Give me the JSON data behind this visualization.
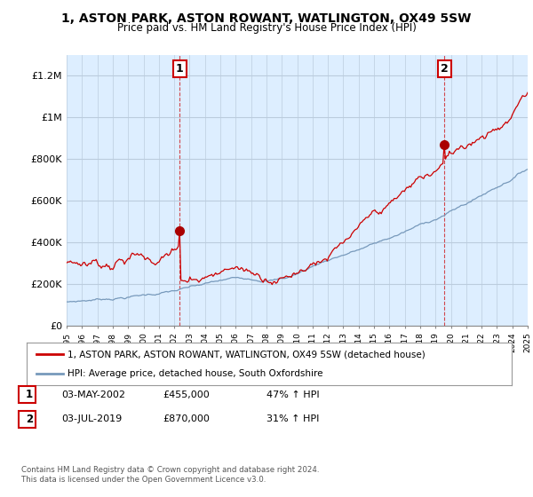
{
  "title_line1": "1, ASTON PARK, ASTON ROWANT, WATLINGTON, OX49 5SW",
  "title_line2": "Price paid vs. HM Land Registry's House Price Index (HPI)",
  "ylim": [
    0,
    1300000
  ],
  "yticks": [
    0,
    200000,
    400000,
    600000,
    800000,
    1000000,
    1200000
  ],
  "ytick_labels": [
    "£0",
    "£200K",
    "£400K",
    "£600K",
    "£800K",
    "£1M",
    "£1.2M"
  ],
  "x_start_year": 1995,
  "x_end_year": 2025,
  "sale1_year": 2002.33,
  "sale1_price": 455000,
  "sale2_year": 2019.5,
  "sale2_price": 870000,
  "legend_line1": "1, ASTON PARK, ASTON ROWANT, WATLINGTON, OX49 5SW (detached house)",
  "legend_line2": "HPI: Average price, detached house, South Oxfordshire",
  "line1_color": "#cc0000",
  "line2_color": "#7799bb",
  "chart_bg": "#ddeeff",
  "marker_color": "#aa0000",
  "annotation1_label": "1",
  "annotation2_label": "2",
  "table_rows": [
    [
      "1",
      "03-MAY-2002",
      "£455,000",
      "47% ↑ HPI"
    ],
    [
      "2",
      "03-JUL-2019",
      "£870,000",
      "31% ↑ HPI"
    ]
  ],
  "footnote": "Contains HM Land Registry data © Crown copyright and database right 2024.\nThis data is licensed under the Open Government Licence v3.0.",
  "background_color": "#ffffff",
  "grid_color": "#bbccdd"
}
